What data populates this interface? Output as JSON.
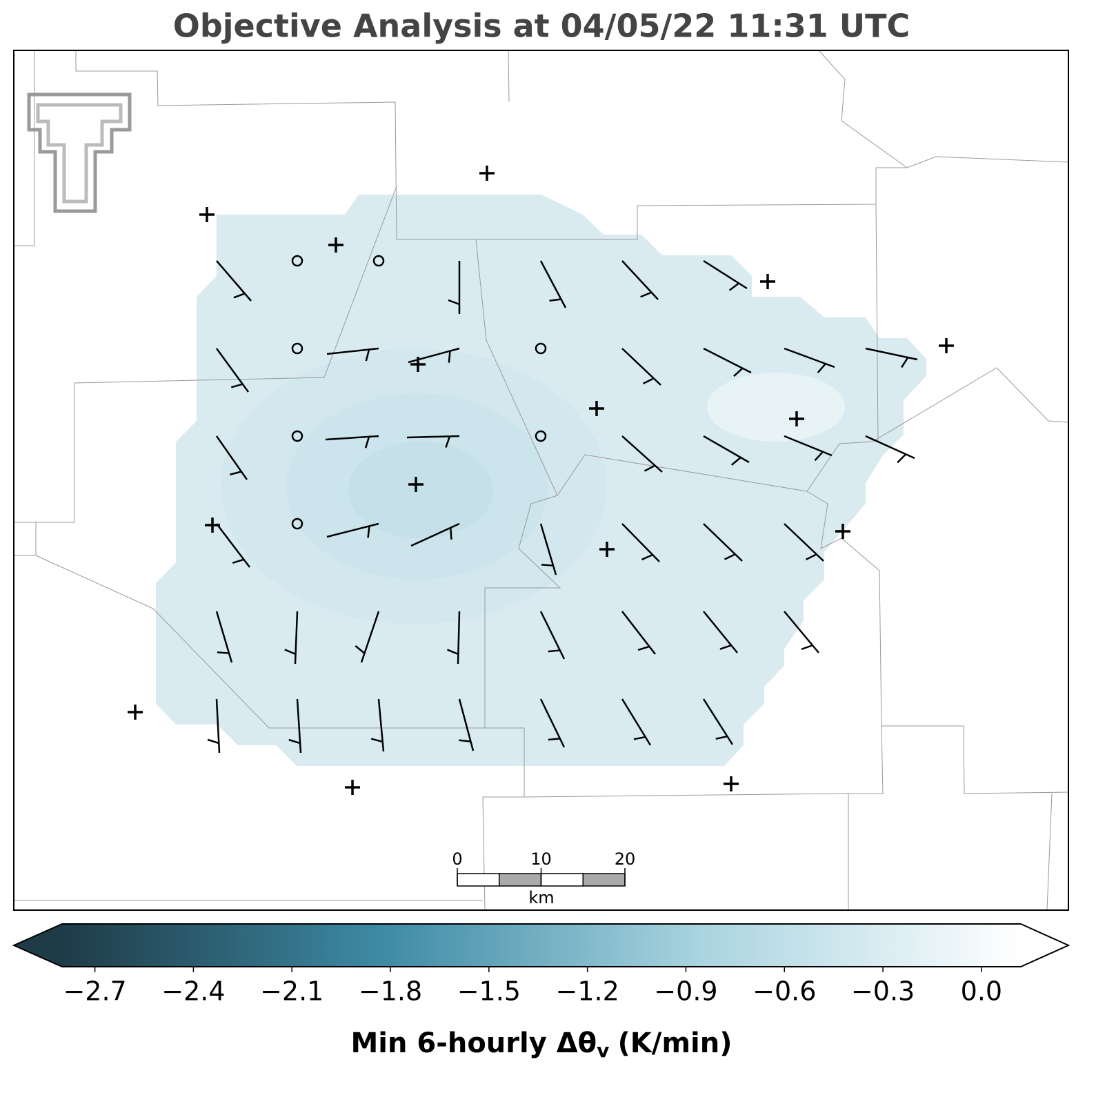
{
  "chart_data": {
    "type": "map",
    "title": "Objective Analysis at 04/05/22 11:31 UTC",
    "colorbar": {
      "label": {
        "main": "Min 6-hourly Δθ",
        "sub": "v",
        "unit": "(K/min)"
      },
      "lim": [
        -2.8,
        0.12
      ],
      "ticks": [
        {
          "value": -2.7,
          "label": "−2.7"
        },
        {
          "value": -2.4,
          "label": "−2.4"
        },
        {
          "value": -2.1,
          "label": "−2.1"
        },
        {
          "value": -1.8,
          "label": "−1.8"
        },
        {
          "value": -1.5,
          "label": "−1.5"
        },
        {
          "value": -1.2,
          "label": "−1.2"
        },
        {
          "value": -0.9,
          "label": "−0.9"
        },
        {
          "value": -0.6,
          "label": "−0.6"
        },
        {
          "value": -0.3,
          "label": "−0.3"
        },
        {
          "value": 0,
          "label": "0.0"
        }
      ],
      "colors": [
        "#1f3b47",
        "#3d8aa5",
        "#a9d4e0",
        "#ffffff"
      ]
    },
    "scale_bar": {
      "ticks": [
        0,
        10,
        20
      ],
      "unit": "km"
    }
  }
}
